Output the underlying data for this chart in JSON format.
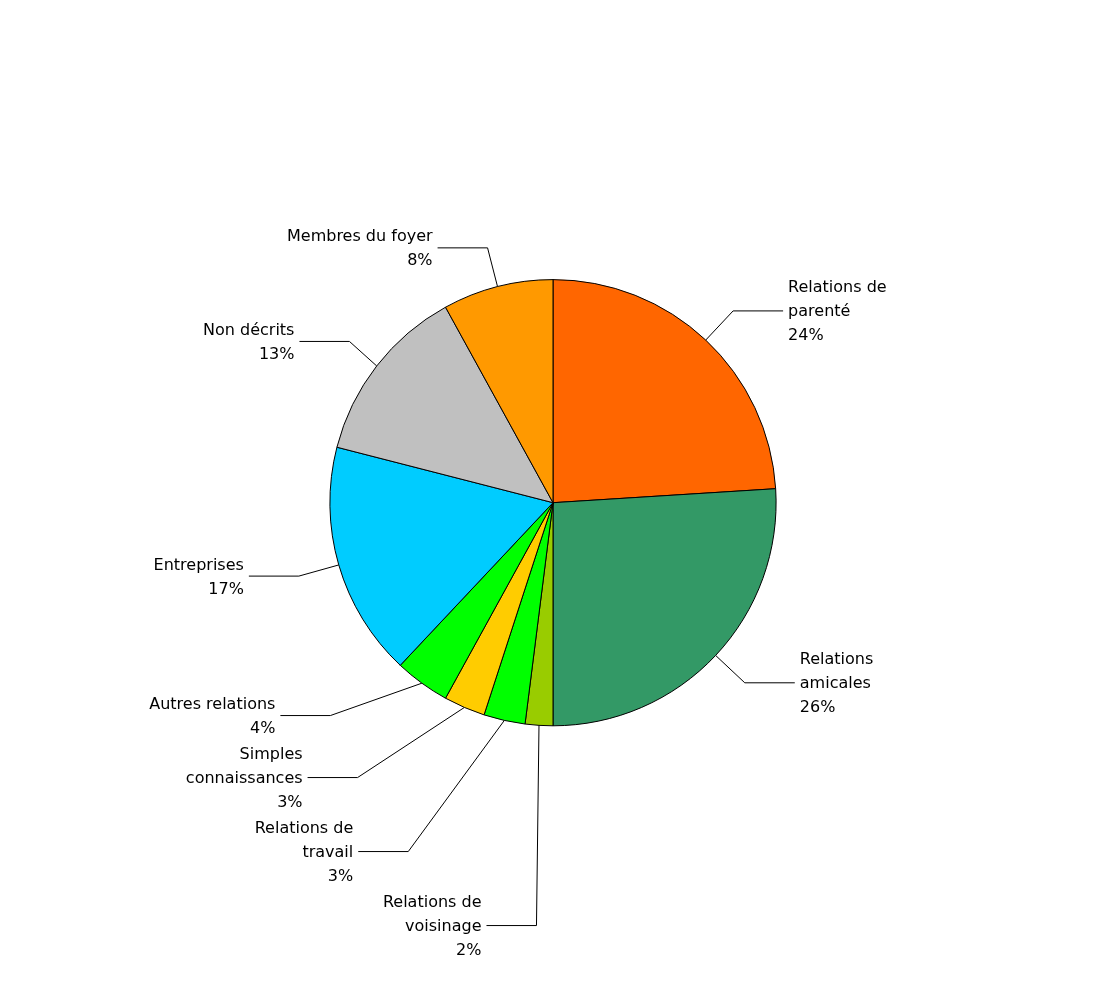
{
  "chart_data": {
    "type": "pie",
    "categories": [
      "Relations de\nparenté",
      "Relations\namicales",
      "Relations de\nvoisinage",
      "Relations de\ntravail",
      "Simples\nconnaissances",
      "Autres relations",
      "Entreprises",
      "Non décrits",
      "Membres du foyer"
    ],
    "values": [
      24,
      26,
      2,
      3,
      3,
      4,
      17,
      13,
      8
    ],
    "value_labels": [
      "24%",
      "26%",
      "2%",
      "3%",
      "3%",
      "4%",
      "17%",
      "13%",
      "8%"
    ],
    "colors": [
      "#ff6600",
      "#339966",
      "#99cc00",
      "#00ff00",
      "#ffcc00",
      "#00ff00",
      "#00ccff",
      "#c0c0c0",
      "#ff9900"
    ],
    "legend": false
  }
}
